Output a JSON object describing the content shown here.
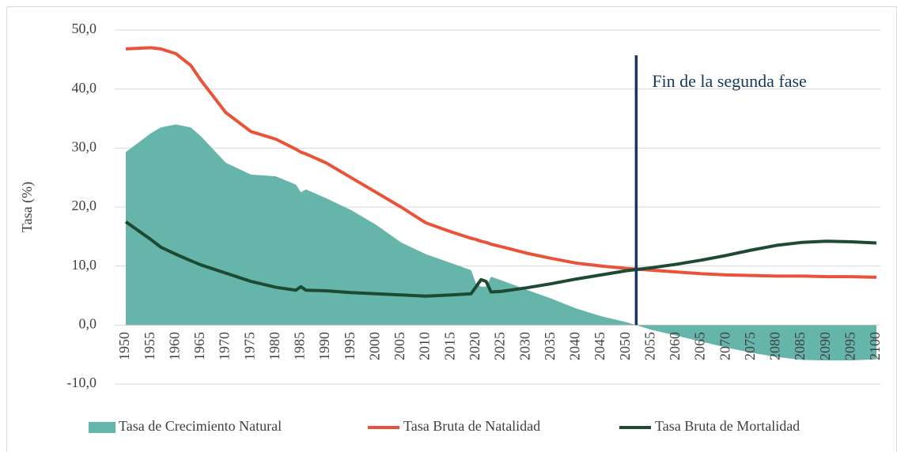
{
  "chart_data": {
    "type": "area-line",
    "y_label": "Tasa (%)",
    "x": [
      1950,
      1955,
      1957,
      1960,
      1963,
      1965,
      1970,
      1975,
      1980,
      1984,
      1985,
      1986,
      1990,
      1995,
      2000,
      2005,
      2010,
      2015,
      2019,
      2020,
      2021,
      2022,
      2023,
      2025,
      2030,
      2035,
      2040,
      2045,
      2050,
      2055,
      2060,
      2065,
      2070,
      2075,
      2080,
      2085,
      2090,
      2095,
      2100
    ],
    "series": [
      {
        "name": "Tasa de Crecimiento Natural",
        "kind": "area",
        "color": "#66b5ab",
        "values": [
          29.3,
          32.5,
          33.5,
          34.0,
          33.5,
          32.0,
          27.5,
          25.5,
          25.2,
          23.8,
          22.5,
          23.0,
          21.5,
          19.5,
          17.0,
          14.0,
          12.0,
          10.5,
          9.3,
          7.0,
          6.5,
          6.5,
          8.2,
          7.6,
          6.0,
          4.5,
          2.8,
          1.5,
          0.5,
          -0.8,
          -1.8,
          -2.8,
          -3.8,
          -4.7,
          -5.4,
          -5.9,
          -6.0,
          -6.0,
          -5.8
        ]
      },
      {
        "name": "Tasa Bruta de Natalidad",
        "kind": "line",
        "color": "#e8533a",
        "values": [
          46.8,
          47.0,
          46.8,
          46.0,
          44.0,
          41.5,
          36.0,
          32.8,
          31.5,
          29.8,
          29.3,
          29.0,
          27.5,
          25.0,
          22.5,
          20.0,
          17.3,
          15.8,
          14.7,
          14.5,
          14.2,
          14.0,
          13.7,
          13.3,
          12.2,
          11.3,
          10.5,
          10.0,
          9.6,
          9.3,
          9.0,
          8.7,
          8.5,
          8.4,
          8.3,
          8.3,
          8.2,
          8.2,
          8.1
        ]
      },
      {
        "name": "Tasa Bruta de Mortalidad",
        "kind": "line",
        "color": "#1e4a33",
        "values": [
          17.5,
          14.5,
          13.2,
          12.0,
          10.9,
          10.2,
          8.8,
          7.4,
          6.4,
          5.9,
          6.5,
          5.9,
          5.8,
          5.5,
          5.3,
          5.1,
          4.9,
          5.1,
          5.3,
          6.5,
          7.7,
          7.4,
          5.6,
          5.7,
          6.3,
          7.0,
          7.8,
          8.5,
          9.2,
          9.7,
          10.3,
          11.0,
          11.8,
          12.7,
          13.5,
          14.0,
          14.2,
          14.1,
          13.9
        ]
      }
    ],
    "annotation": {
      "text": "Fin de la segunda fase",
      "x": 2052,
      "color": "#17375e"
    },
    "xlim": [
      1950,
      2100
    ],
    "xticks": [
      1950,
      1955,
      1960,
      1965,
      1970,
      1975,
      1980,
      1985,
      1990,
      1995,
      2000,
      2005,
      2010,
      2015,
      2020,
      2025,
      2030,
      2035,
      2040,
      2045,
      2050,
      2055,
      2060,
      2065,
      2070,
      2075,
      2080,
      2085,
      2090,
      2095,
      2100
    ],
    "ylim": [
      -10,
      50
    ],
    "yticks": [
      {
        "value": -10,
        "label": "-10,0"
      },
      {
        "value": 0,
        "label": "0,0"
      },
      {
        "value": 10,
        "label": "10,0"
      },
      {
        "value": 20,
        "label": "20,0"
      },
      {
        "value": 30,
        "label": "30,0"
      },
      {
        "value": 40,
        "label": "40,0"
      },
      {
        "value": 50,
        "label": "50,0"
      }
    ],
    "grid": true,
    "legend": "bottom"
  }
}
